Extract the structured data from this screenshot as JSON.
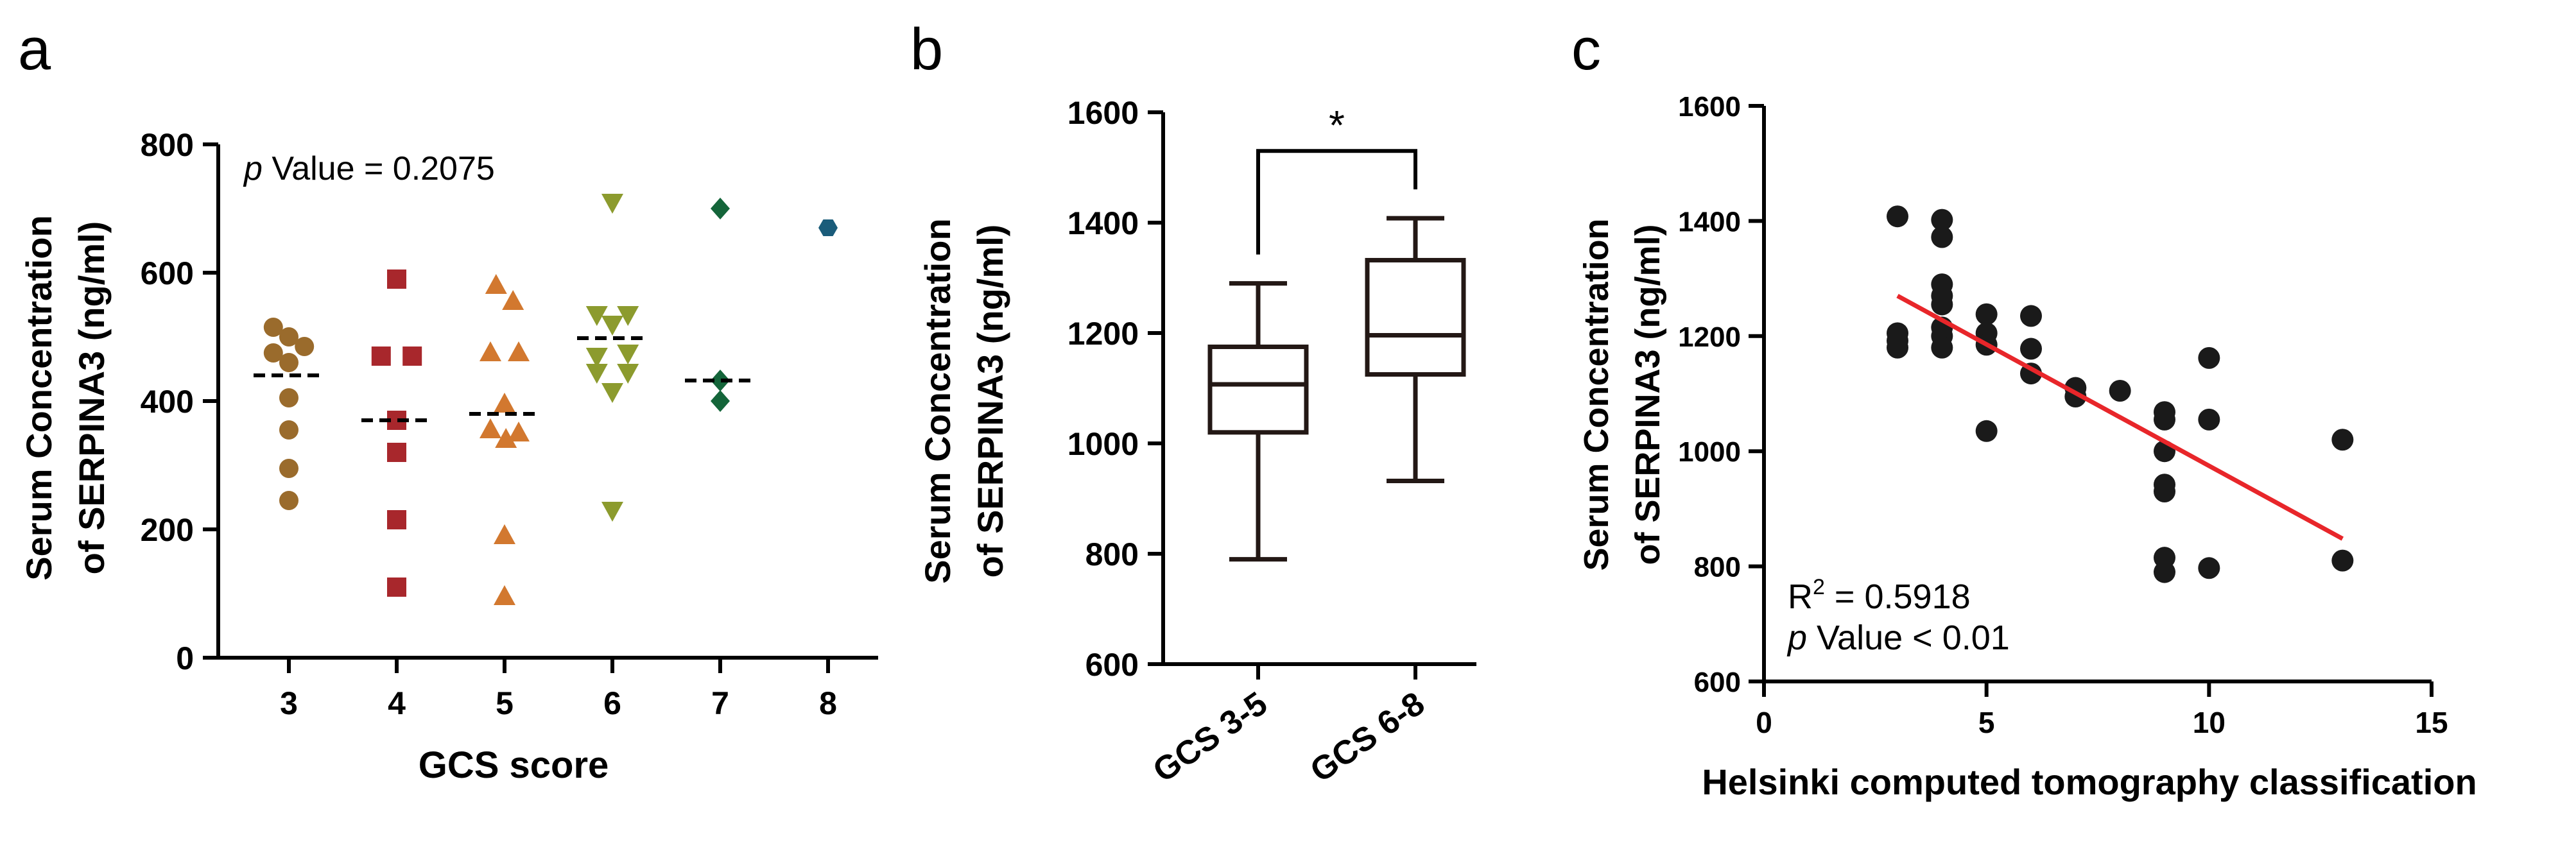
{
  "chart_data": [
    {
      "panel": "a",
      "type": "scatter",
      "xlabel": "GCS score",
      "ylabel_line1": "Serum Concentration",
      "ylabel_line2": "of SERPINA3 (ng/ml)",
      "annotation_italic": "p",
      "annotation_rest": " Value = 0.2075",
      "categories": [
        "3",
        "4",
        "5",
        "6",
        "7",
        "8"
      ],
      "ylim": [
        0,
        800
      ],
      "yticks": [
        "0",
        "200",
        "400",
        "600",
        "800"
      ],
      "yticks_values": [
        0,
        200,
        400,
        600,
        800
      ],
      "groups": [
        {
          "x": "3",
          "shape": "circle",
          "color": "#9a6b2c",
          "median": 440,
          "points": [
            [
              -0.22,
              515
            ],
            [
              -0.22,
              475
            ],
            [
              0,
              500
            ],
            [
              0.22,
              485
            ],
            [
              0,
              460
            ],
            [
              0,
              405
            ],
            [
              0,
              355
            ],
            [
              0,
              295
            ],
            [
              0,
              245
            ]
          ]
        },
        {
          "x": "4",
          "shape": "square",
          "color": "#a8272c",
          "median": 370,
          "points": [
            [
              0,
              590
            ],
            [
              -0.22,
              470
            ],
            [
              0.22,
              470
            ],
            [
              0,
              370
            ],
            [
              0,
              320
            ],
            [
              0,
              215
            ],
            [
              0,
              110
            ]
          ]
        },
        {
          "x": "5",
          "shape": "triangle-up",
          "color": "#d2782f",
          "median": 380,
          "points": [
            [
              -0.12,
              580
            ],
            [
              0.12,
              555
            ],
            [
              -0.2,
              475
            ],
            [
              0.2,
              475
            ],
            [
              0,
              395
            ],
            [
              -0.2,
              355
            ],
            [
              0.2,
              350
            ],
            [
              0.02,
              340
            ],
            [
              0,
              190
            ],
            [
              0,
              95
            ]
          ]
        },
        {
          "x": "6",
          "shape": "triangle-down",
          "color": "#8c9b2e",
          "median": 498,
          "points": [
            [
              0,
              710
            ],
            [
              -0.22,
              535
            ],
            [
              0.22,
              535
            ],
            [
              0,
              520
            ],
            [
              -0.22,
              470
            ],
            [
              0.22,
              475
            ],
            [
              -0.22,
              445
            ],
            [
              0.22,
              445
            ],
            [
              0,
              415
            ],
            [
              0,
              230
            ]
          ]
        },
        {
          "x": "7",
          "shape": "diamond",
          "color": "#14653a",
          "median": 432,
          "points": [
            [
              0,
              700
            ],
            [
              0,
              432
            ],
            [
              0,
              400
            ]
          ]
        },
        {
          "x": "8",
          "shape": "hexagon",
          "color": "#1a5c7a",
          "median": null,
          "points": [
            [
              0,
              670
            ]
          ]
        }
      ]
    },
    {
      "panel": "b",
      "type": "box",
      "ylabel_line1": "Serum Concentration",
      "ylabel_line2": "of SERPINA3 (ng/ml)",
      "categories": [
        "GCS 3-5",
        "GCS 6-8"
      ],
      "ylim": [
        600,
        1600
      ],
      "yticks": [
        "600",
        "800",
        "1000",
        "1200",
        "1400",
        "1600"
      ],
      "yticks_values": [
        600,
        800,
        1000,
        1200,
        1400,
        1600
      ],
      "boxes": [
        {
          "min": 790,
          "q1": 1020,
          "median": 1107,
          "q3": 1175,
          "max": 1290
        },
        {
          "min": 932,
          "q1": 1125,
          "median": 1196,
          "q3": 1332,
          "max": 1408
        }
      ],
      "significance": "*",
      "bracket_y": 1530
    },
    {
      "panel": "c",
      "type": "scatter",
      "xlabel": "Helsinki computed tomography classification",
      "ylabel_line1": "Serum Concentration",
      "ylabel_line2": "of SERPINA3 (ng/ml)",
      "r2_prefix": "R",
      "r2_sup": "2",
      "r2_rest": " = 0.5918",
      "p_italic": "p",
      "p_rest": " Value < 0.01",
      "xlim": [
        0,
        15
      ],
      "ylim": [
        600,
        1600
      ],
      "xticks": [
        "0",
        "5",
        "10",
        "15"
      ],
      "xticks_values": [
        0,
        5,
        10,
        15
      ],
      "yticks": [
        "600",
        "800",
        "1000",
        "1200",
        "1400",
        "1600"
      ],
      "yticks_values": [
        600,
        800,
        1000,
        1200,
        1400,
        1600
      ],
      "points": [
        [
          3,
          1408
        ],
        [
          3,
          1205
        ],
        [
          3,
          1192
        ],
        [
          3,
          1180
        ],
        [
          4,
          1402
        ],
        [
          4,
          1372
        ],
        [
          4,
          1290
        ],
        [
          4,
          1270
        ],
        [
          4,
          1255
        ],
        [
          4,
          1215
        ],
        [
          4,
          1200
        ],
        [
          4,
          1180
        ],
        [
          5,
          1238
        ],
        [
          5,
          1205
        ],
        [
          5,
          1185
        ],
        [
          5,
          1035
        ],
        [
          6,
          1235
        ],
        [
          6,
          1178
        ],
        [
          6,
          1135
        ],
        [
          7,
          1110
        ],
        [
          7,
          1095
        ],
        [
          8,
          1105
        ],
        [
          9,
          1068
        ],
        [
          9,
          1055
        ],
        [
          9,
          1000
        ],
        [
          9,
          942
        ],
        [
          9,
          930
        ],
        [
          9,
          815
        ],
        [
          9,
          790
        ],
        [
          10,
          1162
        ],
        [
          10,
          1055
        ],
        [
          10,
          797
        ],
        [
          13,
          1020
        ],
        [
          13,
          810
        ]
      ],
      "regression": {
        "x1": 3,
        "y1": 1270,
        "x2": 13,
        "y2": 848,
        "color": "#e8262a"
      },
      "point_color": "#1a1a1a"
    }
  ],
  "panel_letters": {
    "a": "a",
    "b": "b",
    "c": "c"
  }
}
